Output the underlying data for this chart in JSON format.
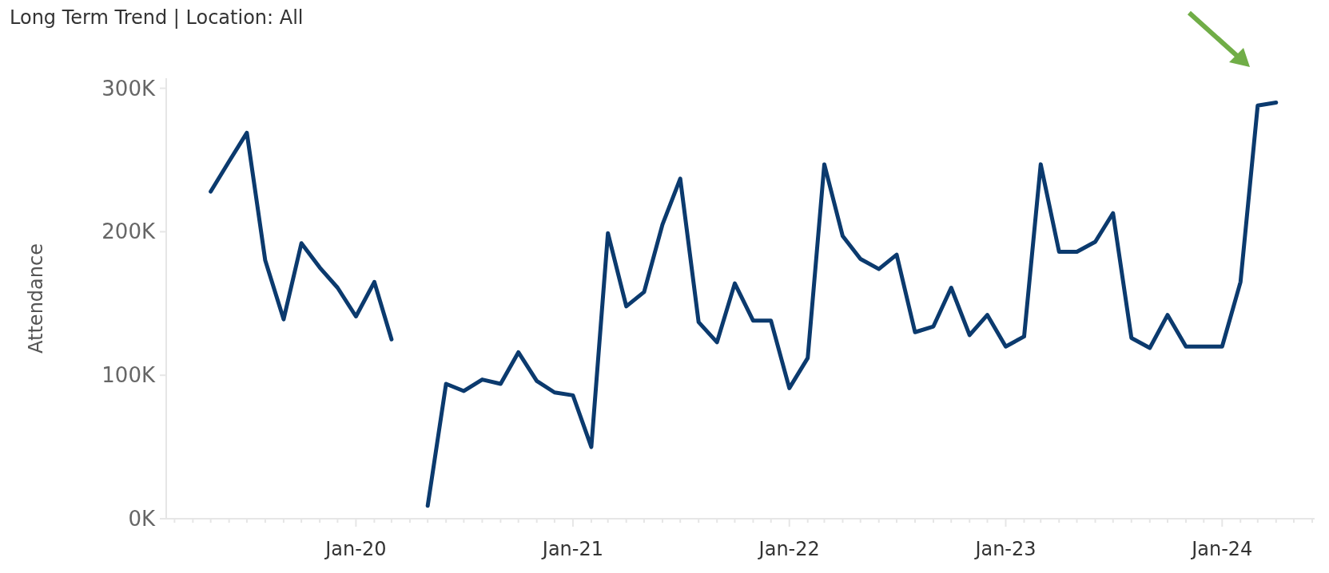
{
  "chart_data": {
    "type": "line",
    "title": "Long Term Trend | Location: All",
    "ylabel": "Attendance",
    "x": [
      "2019-05",
      "2019-06",
      "2019-07",
      "2019-08",
      "2019-09",
      "2019-10",
      "2019-11",
      "2019-12",
      "2020-01",
      "2020-02",
      "2020-03",
      "2020-04",
      "2020-05",
      "2020-06",
      "2020-07",
      "2020-08",
      "2020-09",
      "2020-10",
      "2020-11",
      "2020-12",
      "2021-01",
      "2021-02",
      "2021-03",
      "2021-04",
      "2021-05",
      "2021-06",
      "2021-07",
      "2021-08",
      "2021-09",
      "2021-10",
      "2021-11",
      "2021-12",
      "2022-01",
      "2022-02",
      "2022-03",
      "2022-04",
      "2022-05",
      "2022-06",
      "2022-07",
      "2022-08",
      "2022-09",
      "2022-10",
      "2022-11",
      "2022-12",
      "2023-01",
      "2023-02",
      "2023-03",
      "2023-04",
      "2023-05",
      "2023-06",
      "2023-07",
      "2023-08",
      "2023-09",
      "2023-10",
      "2023-11",
      "2023-12",
      "2024-01",
      "2024-02",
      "2024-03",
      "2024-04"
    ],
    "series": [
      {
        "color": "#0b3a6e",
        "values": [
          228000,
          249000,
          269000,
          180000,
          139000,
          192000,
          175000,
          161000,
          141000,
          165000,
          125000,
          null,
          9000,
          94000,
          89000,
          97000,
          94000,
          116000,
          96000,
          88000,
          86000,
          50000,
          199000,
          148000,
          158000,
          205000,
          237000,
          137000,
          123000,
          164000,
          138000,
          138000,
          91000,
          112000,
          247000,
          197000,
          181000,
          174000,
          184000,
          130000,
          134000,
          161000,
          128000,
          142000,
          120000,
          127000,
          247000,
          186000,
          186000,
          193000,
          213000,
          126000,
          119000,
          142000,
          120000,
          120000,
          120000,
          165000,
          288000,
          290000
        ]
      }
    ],
    "xlim": [
      "2019-02-15",
      "2024-06-05"
    ],
    "xticks": [
      {
        "value": "2019-03",
        "label": null
      },
      {
        "value": "2019-04",
        "label": null
      },
      {
        "value": "2019-05",
        "label": null
      },
      {
        "value": "2019-06",
        "label": null
      },
      {
        "value": "2019-07",
        "label": null
      },
      {
        "value": "2019-08",
        "label": null
      },
      {
        "value": "2019-09",
        "label": null
      },
      {
        "value": "2019-10",
        "label": null
      },
      {
        "value": "2019-11",
        "label": null
      },
      {
        "value": "2019-12",
        "label": null
      },
      {
        "value": "2020-01",
        "label": "Jan-20"
      },
      {
        "value": "2020-02",
        "label": null
      },
      {
        "value": "2020-03",
        "label": null
      },
      {
        "value": "2020-04",
        "label": null
      },
      {
        "value": "2020-05",
        "label": null
      },
      {
        "value": "2020-06",
        "label": null
      },
      {
        "value": "2020-07",
        "label": null
      },
      {
        "value": "2020-08",
        "label": null
      },
      {
        "value": "2020-09",
        "label": null
      },
      {
        "value": "2020-10",
        "label": null
      },
      {
        "value": "2020-11",
        "label": null
      },
      {
        "value": "2020-12",
        "label": null
      },
      {
        "value": "2021-01",
        "label": "Jan-21"
      },
      {
        "value": "2021-02",
        "label": null
      },
      {
        "value": "2021-03",
        "label": null
      },
      {
        "value": "2021-04",
        "label": null
      },
      {
        "value": "2021-05",
        "label": null
      },
      {
        "value": "2021-06",
        "label": null
      },
      {
        "value": "2021-07",
        "label": null
      },
      {
        "value": "2021-08",
        "label": null
      },
      {
        "value": "2021-09",
        "label": null
      },
      {
        "value": "2021-10",
        "label": null
      },
      {
        "value": "2021-11",
        "label": null
      },
      {
        "value": "2021-12",
        "label": null
      },
      {
        "value": "2022-01",
        "label": "Jan-22"
      },
      {
        "value": "2022-02",
        "label": null
      },
      {
        "value": "2022-03",
        "label": null
      },
      {
        "value": "2022-04",
        "label": null
      },
      {
        "value": "2022-05",
        "label": null
      },
      {
        "value": "2022-06",
        "label": null
      },
      {
        "value": "2022-07",
        "label": null
      },
      {
        "value": "2022-08",
        "label": null
      },
      {
        "value": "2022-09",
        "label": null
      },
      {
        "value": "2022-10",
        "label": null
      },
      {
        "value": "2022-11",
        "label": null
      },
      {
        "value": "2022-12",
        "label": null
      },
      {
        "value": "2023-01",
        "label": "Jan-23"
      },
      {
        "value": "2023-02",
        "label": null
      },
      {
        "value": "2023-03",
        "label": null
      },
      {
        "value": "2023-04",
        "label": null
      },
      {
        "value": "2023-05",
        "label": null
      },
      {
        "value": "2023-06",
        "label": null
      },
      {
        "value": "2023-07",
        "label": null
      },
      {
        "value": "2023-08",
        "label": null
      },
      {
        "value": "2023-09",
        "label": null
      },
      {
        "value": "2023-10",
        "label": null
      },
      {
        "value": "2023-11",
        "label": null
      },
      {
        "value": "2023-12",
        "label": null
      },
      {
        "value": "2024-01",
        "label": "Jan-24"
      },
      {
        "value": "2024-02",
        "label": null
      },
      {
        "value": "2024-03",
        "label": null
      },
      {
        "value": "2024-04",
        "label": null
      },
      {
        "value": "2024-05",
        "label": null
      },
      {
        "value": "2024-06",
        "label": null
      }
    ],
    "ylim": [
      0,
      307000
    ],
    "yticks": [
      {
        "value": 0,
        "label": "0K"
      },
      {
        "value": 100000,
        "label": "100K"
      },
      {
        "value": 200000,
        "label": "200K"
      },
      {
        "value": 300000,
        "label": "300K"
      }
    ],
    "marker": "none",
    "line_style": "solid"
  }
}
